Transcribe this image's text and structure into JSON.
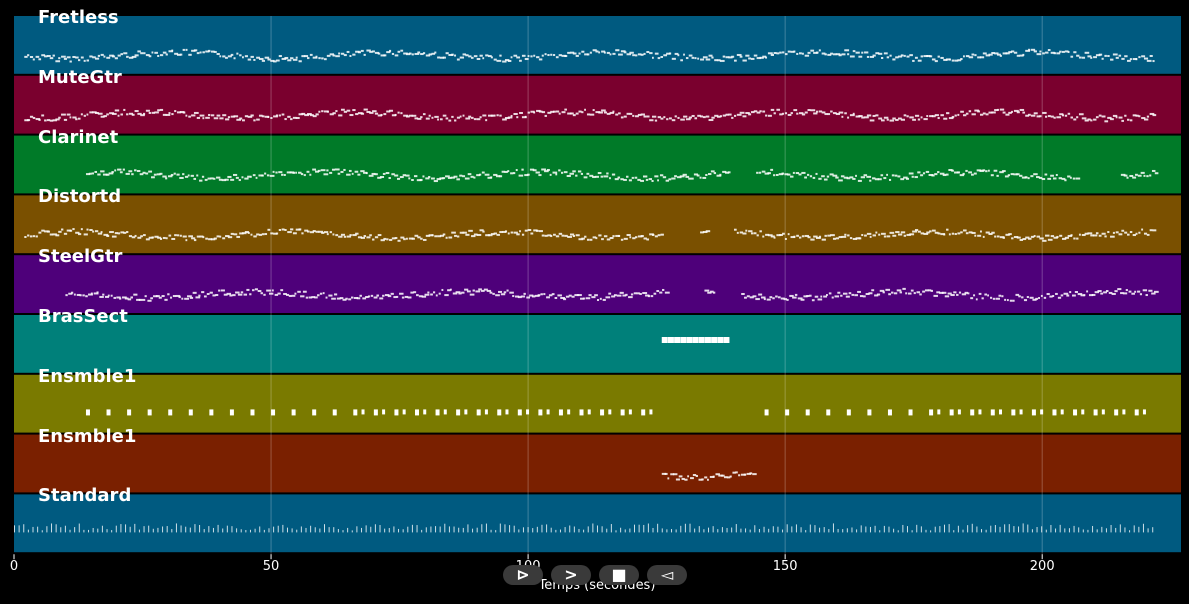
{
  "chart_data": {
    "type": "piano-roll",
    "title": "",
    "xlabel": "Temps (secondes)",
    "ylabel": "",
    "xlim": [
      0,
      227
    ],
    "xticks": [
      0,
      50,
      100,
      150,
      200
    ],
    "grid": true,
    "tracks": [
      {
        "name": "Fretless",
        "color": "#005a80",
        "start": 2,
        "end": 222,
        "pattern": "dense",
        "gaps": []
      },
      {
        "name": "MuteGtr",
        "color": "#7a002e",
        "start": 2,
        "end": 222,
        "pattern": "dense",
        "gaps": []
      },
      {
        "name": "Clarinet",
        "color": "#007a28",
        "start": 14,
        "end": 222,
        "pattern": "dense",
        "gaps": [
          [
            139,
            144
          ],
          [
            207,
            215
          ]
        ]
      },
      {
        "name": "Distortd",
        "color": "#7a5000",
        "start": 2,
        "end": 222,
        "pattern": "dense",
        "gaps": [
          [
            126,
            133
          ],
          [
            135,
            140
          ]
        ]
      },
      {
        "name": "SteelGtr",
        "color": "#4e007a",
        "start": 10,
        "end": 222,
        "pattern": "dense",
        "gaps": [
          [
            127,
            134
          ],
          [
            136,
            141
          ]
        ]
      },
      {
        "name": "BrasSect",
        "color": "#00807a",
        "start": 126,
        "end": 138,
        "pattern": "block",
        "gaps": []
      },
      {
        "name": "Ensmble1",
        "color": "#7a7a00",
        "start": 14,
        "end": 222,
        "pattern": "sparse",
        "gaps": [
          [
            126,
            143
          ]
        ]
      },
      {
        "name": "Ensmble1",
        "color": "#7a2000",
        "start": 126,
        "end": 144,
        "pattern": "dense",
        "gaps": []
      },
      {
        "name": "Standard",
        "color": "#005a80",
        "start": 0,
        "end": 222,
        "pattern": "ticks",
        "gaps": []
      }
    ]
  },
  "controls": {
    "play_label": "⊳",
    "forward_label": ">",
    "stop_label": "■",
    "back_label": "◅"
  }
}
